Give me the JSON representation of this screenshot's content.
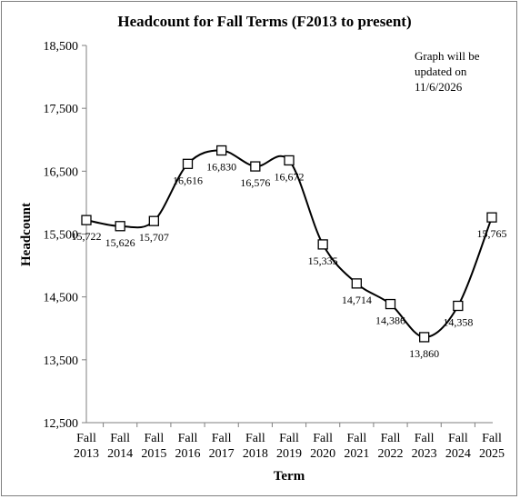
{
  "chart_data": {
    "type": "line",
    "title": "Headcount for Fall Terms (F2013 to present)",
    "xlabel": "Term",
    "ylabel": "Headcount",
    "annotation": [
      "Graph will be",
      "updated on",
      "11/6/2026"
    ],
    "ylim": [
      12500,
      18500
    ],
    "yticks": [
      "18,500",
      "17,500",
      "16,500",
      "15,500",
      "14,500",
      "13,500",
      "12,500"
    ],
    "ytick_values": [
      18500,
      17500,
      16500,
      15500,
      14500,
      13500,
      12500
    ],
    "categories": [
      [
        "Fall",
        "2013"
      ],
      [
        "Fall",
        "2014"
      ],
      [
        "Fall",
        "2015"
      ],
      [
        "Fall",
        "2016"
      ],
      [
        "Fall",
        "2017"
      ],
      [
        "Fall",
        "2018"
      ],
      [
        "Fall",
        "2019"
      ],
      [
        "Fall",
        "2020"
      ],
      [
        "Fall",
        "2021"
      ],
      [
        "Fall",
        "2022"
      ],
      [
        "Fall",
        "2023"
      ],
      [
        "Fall",
        "2024"
      ],
      [
        "Fall",
        "2025"
      ]
    ],
    "values": [
      15722,
      15626,
      15707,
      16616,
      16830,
      16576,
      16672,
      15335,
      14714,
      14386,
      13860,
      14358,
      15765
    ],
    "value_labels": [
      "15,722",
      "15,626",
      "15,707",
      "16,616",
      "16,830",
      "16,576",
      "16,672",
      "15,335",
      "14,714",
      "14,386",
      "13,860",
      "14,358",
      "15,765"
    ],
    "grid": false,
    "legend": "none",
    "marker": "square-open",
    "line_color": "#000000"
  }
}
